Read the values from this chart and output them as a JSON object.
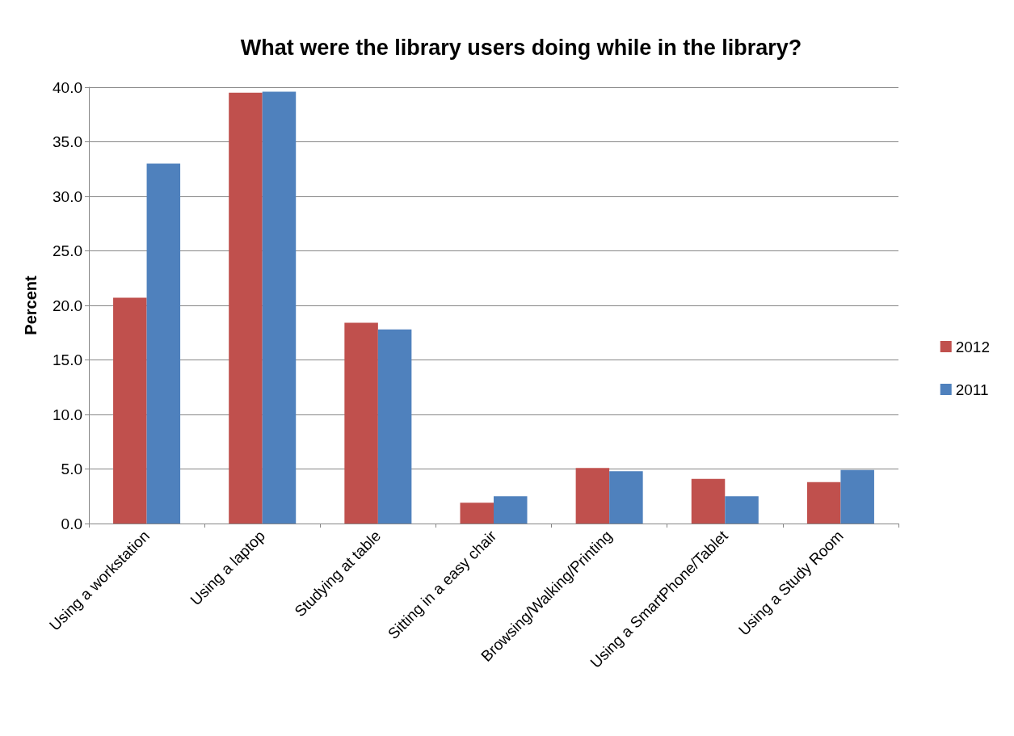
{
  "chart_data": {
    "type": "bar",
    "title": "What were the library users doing while in the library?",
    "ylabel": "Percent",
    "categories": [
      "Using a workstation",
      "Using a laptop",
      "Studying at table",
      "Sitting in a easy chair",
      "Browsing/Walking/Printing",
      "Using a SmartPhone/Tablet",
      "Using a Study Room"
    ],
    "series": [
      {
        "name": "2012",
        "color": "#c0504d",
        "values": [
          20.7,
          39.5,
          18.4,
          1.9,
          5.1,
          4.1,
          3.8
        ]
      },
      {
        "name": "2011",
        "color": "#4f81bd",
        "values": [
          33.0,
          39.6,
          17.8,
          2.5,
          4.8,
          2.5,
          4.9
        ]
      }
    ],
    "ylim": [
      0,
      40
    ],
    "yticks": [
      {
        "value": 0,
        "label": "0.0"
      },
      {
        "value": 5,
        "label": "5.0"
      },
      {
        "value": 10,
        "label": "10.0"
      },
      {
        "value": 15,
        "label": "15.0"
      },
      {
        "value": 20,
        "label": "20.0"
      },
      {
        "value": 25,
        "label": "25.0"
      },
      {
        "value": 30,
        "label": "30.0"
      },
      {
        "value": 35,
        "label": "35.0"
      },
      {
        "value": 40,
        "label": "40.0"
      }
    ],
    "grid": "y",
    "legend": "right"
  }
}
